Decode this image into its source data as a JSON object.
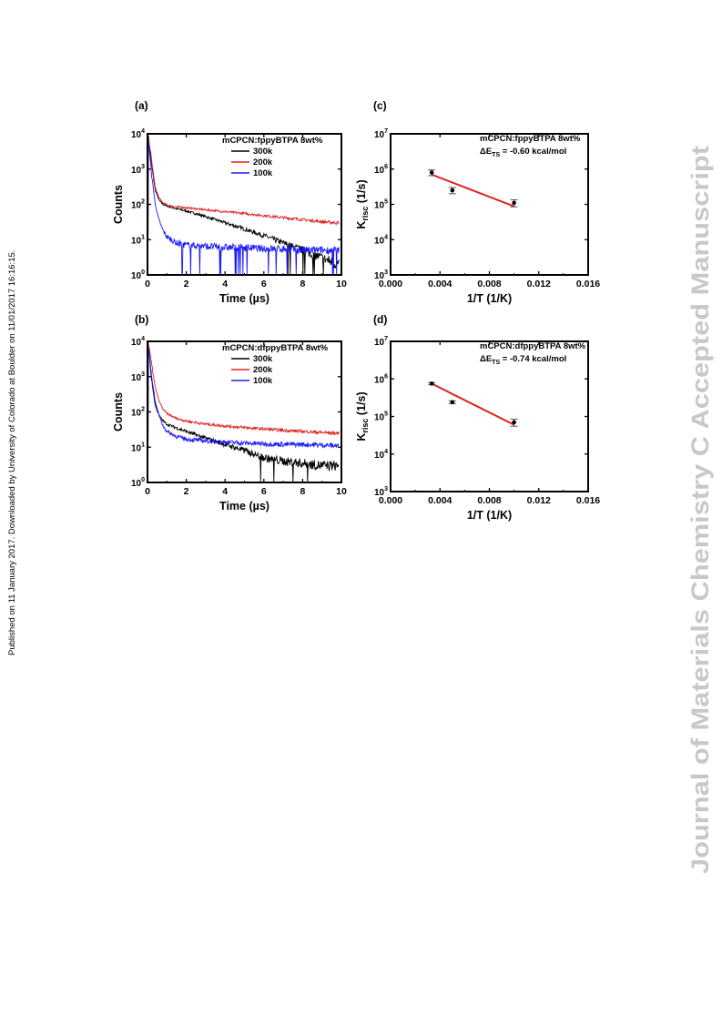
{
  "page": {
    "side_note": "Published on 11 January 2017. Downloaded by University of Colorado at Boulder on 11/01/2017 16:16:15.",
    "watermark": "Journal of Materials Chemistry C Accepted Manuscript",
    "watermark_color": "#c8c8c8"
  },
  "chart_data": [
    {
      "id": "a",
      "type": "line",
      "panel_label": "(a)",
      "xlabel": "Time (µs)",
      "ylabel": "Counts",
      "xlim": [
        0,
        10
      ],
      "ylim": [
        1,
        10000
      ],
      "yscale": "log",
      "xticks": [
        "0",
        "2",
        "4",
        "6",
        "8",
        "10"
      ],
      "yticks": [
        "10^0",
        "10^1",
        "10^2",
        "10^3",
        "10^4"
      ],
      "legend_title": "mCPCN:fppyBTPA 8wt%",
      "legend_position": "top-right",
      "series": [
        {
          "name": "300k",
          "color": "#000000",
          "x": [
            0.05,
            0.2,
            0.4,
            0.6,
            0.8,
            1,
            1.5,
            2,
            3,
            4,
            5,
            6,
            7,
            8,
            9,
            9.8
          ],
          "y": [
            8000,
            1500,
            250,
            130,
            100,
            90,
            75,
            65,
            45,
            30,
            20,
            13,
            8,
            5,
            3,
            2
          ]
        },
        {
          "name": "200k",
          "color": "#e02020",
          "x": [
            0.05,
            0.2,
            0.4,
            0.6,
            0.8,
            1,
            1.5,
            2,
            3,
            4,
            5,
            6,
            7,
            8,
            9,
            9.8
          ],
          "y": [
            9000,
            2000,
            300,
            150,
            110,
            95,
            85,
            80,
            70,
            62,
            55,
            48,
            42,
            37,
            32,
            30
          ]
        },
        {
          "name": "100k",
          "color": "#1a1aff",
          "x": [
            0.05,
            0.2,
            0.4,
            0.6,
            0.8,
            1,
            1.5,
            2,
            3,
            4,
            5,
            6,
            7,
            8,
            9,
            9.8
          ],
          "y": [
            7000,
            800,
            100,
            35,
            18,
            12,
            8,
            7,
            6.5,
            6,
            6,
            5.5,
            5.5,
            5,
            5,
            5
          ]
        }
      ]
    },
    {
      "id": "c",
      "type": "scatter",
      "panel_label": "(c)",
      "xlabel": "1/T (1/K)",
      "ylabel": "K_risc (1/s)",
      "xlim": [
        0,
        0.016
      ],
      "ylim": [
        1000,
        10000000
      ],
      "yscale": "log",
      "xticks": [
        "0.000",
        "0.004",
        "0.008",
        "0.012",
        "0.016"
      ],
      "yticks": [
        "10^3",
        "10^4",
        "10^5",
        "10^6",
        "10^7"
      ],
      "legend_title": "mCPCN:fppyBTPA 8wt%",
      "annotation_prefix": "ΔE",
      "annotation_sub": "TS",
      "annotation_value": " = -0.60 kcal/mol",
      "points": {
        "x": [
          0.00333,
          0.005,
          0.01
        ],
        "y": [
          800000,
          250000,
          110000
        ],
        "yerr_lo": [
          650000,
          200000,
          85000
        ],
        "yerr_hi": [
          950000,
          300000,
          135000
        ]
      },
      "fit": {
        "x": [
          0.00333,
          0.01
        ],
        "y": [
          700000,
          88000
        ],
        "color": "#e02020"
      }
    },
    {
      "id": "b",
      "type": "line",
      "panel_label": "(b)",
      "xlabel": "Time (µs)",
      "ylabel": "Counts",
      "xlim": [
        0,
        10
      ],
      "ylim": [
        1,
        10000
      ],
      "yscale": "log",
      "xticks": [
        "0",
        "2",
        "4",
        "6",
        "8",
        "10"
      ],
      "yticks": [
        "10^0",
        "10^1",
        "10^2",
        "10^3",
        "10^4"
      ],
      "legend_title": "mCPCN:dfppyBTPA 8wt%",
      "legend_position": "top-right",
      "series": [
        {
          "name": "300k",
          "color": "#000000",
          "x": [
            0.05,
            0.2,
            0.4,
            0.6,
            0.8,
            1,
            1.5,
            2,
            3,
            4,
            5,
            6,
            7,
            8,
            9,
            9.8
          ],
          "y": [
            8000,
            900,
            150,
            80,
            55,
            45,
            35,
            28,
            18,
            12,
            8,
            5,
            4,
            3.5,
            3,
            3
          ]
        },
        {
          "name": "200k",
          "color": "#e02020",
          "x": [
            0.05,
            0.2,
            0.4,
            0.6,
            0.8,
            1,
            1.5,
            2,
            3,
            4,
            5,
            6,
            7,
            8,
            9,
            9.8
          ],
          "y": [
            9000,
            2500,
            500,
            200,
            120,
            90,
            65,
            55,
            45,
            40,
            36,
            33,
            30,
            28,
            26,
            25
          ]
        },
        {
          "name": "100k",
          "color": "#1a1aff",
          "x": [
            0.05,
            0.2,
            0.4,
            0.6,
            0.8,
            1,
            1.5,
            2,
            3,
            4,
            5,
            6,
            7,
            8,
            9,
            9.8
          ],
          "y": [
            7000,
            1200,
            200,
            80,
            40,
            28,
            20,
            17,
            15,
            14,
            13,
            12.5,
            12,
            12,
            11.5,
            11
          ]
        }
      ]
    },
    {
      "id": "d",
      "type": "scatter",
      "panel_label": "(d)",
      "xlabel": "1/T (1/K)",
      "ylabel": "K_risc (1/s)",
      "xlim": [
        0,
        0.016
      ],
      "ylim": [
        1000,
        10000000
      ],
      "yscale": "log",
      "xticks": [
        "0.000",
        "0.004",
        "0.008",
        "0.012",
        "0.016"
      ],
      "yticks": [
        "10^3",
        "10^4",
        "10^5",
        "10^6",
        "10^7"
      ],
      "legend_title": "mCPCN:dfppyBTPA 8wt%",
      "annotation_prefix": "ΔE",
      "annotation_sub": "TS",
      "annotation_value": " = -0.74 kcal/mol",
      "points": {
        "x": [
          0.00333,
          0.005,
          0.01
        ],
        "y": [
          750000,
          240000,
          70000
        ],
        "yerr_lo": [
          700000,
          220000,
          55000
        ],
        "yerr_hi": [
          800000,
          260000,
          85000
        ]
      },
      "fit": {
        "x": [
          0.00333,
          0.01
        ],
        "y": [
          750000,
          60000
        ],
        "color": "#e02020"
      }
    }
  ]
}
